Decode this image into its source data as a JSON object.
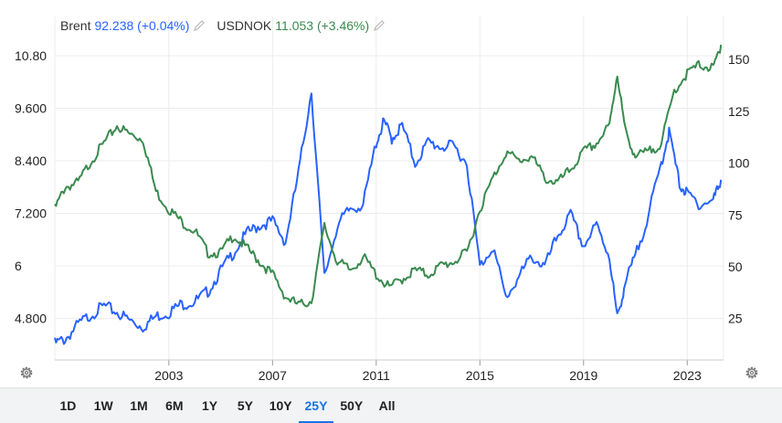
{
  "legend": {
    "brent_name": "Brent",
    "brent_value": "92.238 (+0.04%)",
    "usdnok_name": "USDNOK",
    "usdnok_value": "11.053 (+3.46%)"
  },
  "colors": {
    "brent": "#2962ff",
    "usdnok": "#3a8a4f",
    "grid": "#ececec",
    "text": "#333333",
    "active": "#1a73e8"
  },
  "icons": {
    "edit": "pencil-icon",
    "settings": "gear-icon"
  },
  "ranges": [
    "1D",
    "1W",
    "1M",
    "6M",
    "1Y",
    "5Y",
    "10Y",
    "25Y",
    "50Y",
    "All"
  ],
  "active_range": "25Y",
  "chart_data": {
    "type": "line",
    "x_range": [
      1998.6,
      2024.4
    ],
    "x_ticks": [
      "2003",
      "2007",
      "2011",
      "2015",
      "2019",
      "2023"
    ],
    "left_axis": {
      "ticks": [
        "10.80",
        "9.600",
        "8.400",
        "7.200",
        "6",
        "4.800"
      ],
      "values": [
        10.8,
        9.6,
        8.4,
        7.2,
        6.0,
        4.8
      ],
      "range": [
        3.85,
        11.28
      ]
    },
    "right_axis": {
      "ticks": [
        "150",
        "125",
        "100",
        "75",
        "50",
        "25"
      ],
      "values": [
        150,
        125,
        100,
        75,
        50,
        25
      ],
      "range": [
        5,
        162
      ]
    },
    "series": [
      {
        "name": "Brent",
        "axis": "right",
        "x": [
          1998.6,
          1999.0,
          1999.5,
          2000.0,
          2000.5,
          2001.0,
          2001.5,
          2002.0,
          2002.5,
          2003.0,
          2003.5,
          2004.0,
          2004.5,
          2005.0,
          2005.5,
          2006.0,
          2006.5,
          2007.0,
          2007.5,
          2008.0,
          2008.5,
          2009.0,
          2009.5,
          2010.0,
          2010.5,
          2011.0,
          2011.3,
          2011.6,
          2012.0,
          2012.5,
          2013.0,
          2013.5,
          2014.0,
          2014.5,
          2015.0,
          2015.5,
          2016.0,
          2016.5,
          2017.0,
          2017.5,
          2018.0,
          2018.5,
          2019.0,
          2019.5,
          2020.0,
          2020.3,
          2020.6,
          2021.0,
          2021.5,
          2022.0,
          2022.3,
          2022.7,
          2023.0,
          2023.5,
          2024.0,
          2024.3
        ],
        "y": [
          13,
          15,
          22,
          27,
          31,
          28,
          24,
          21,
          26,
          28,
          32,
          33,
          38,
          48,
          57,
          66,
          70,
          72,
          62,
          95,
          135,
          45,
          70,
          78,
          80,
          110,
          120,
          112,
          118,
          100,
          110,
          108,
          108,
          100,
          50,
          60,
          35,
          45,
          55,
          50,
          65,
          75,
          60,
          70,
          55,
          25,
          42,
          55,
          75,
          100,
          115,
          90,
          85,
          80,
          82,
          92
        ]
      },
      {
        "name": "USDNOK",
        "axis": "left",
        "x": [
          1998.6,
          1999.0,
          1999.5,
          2000.0,
          2000.5,
          2001.0,
          2001.5,
          2002.0,
          2002.5,
          2003.0,
          2003.5,
          2004.0,
          2004.5,
          2005.0,
          2005.5,
          2006.0,
          2006.5,
          2007.0,
          2007.5,
          2008.0,
          2008.5,
          2009.0,
          2009.5,
          2010.0,
          2010.5,
          2011.0,
          2011.5,
          2012.0,
          2012.5,
          2013.0,
          2013.5,
          2014.0,
          2014.5,
          2015.0,
          2015.5,
          2016.0,
          2016.5,
          2017.0,
          2017.5,
          2018.0,
          2018.5,
          2019.0,
          2019.5,
          2020.0,
          2020.3,
          2020.6,
          2021.0,
          2021.5,
          2022.0,
          2022.5,
          2023.0,
          2023.5,
          2024.0,
          2024.3
        ],
        "y": [
          7.3,
          7.8,
          7.9,
          8.4,
          8.8,
          9.2,
          9.0,
          8.9,
          7.7,
          7.3,
          7.0,
          6.8,
          6.3,
          6.3,
          6.7,
          6.4,
          6.1,
          5.8,
          5.3,
          5.1,
          5.2,
          6.9,
          6.1,
          5.9,
          6.2,
          5.8,
          5.5,
          5.7,
          5.9,
          5.8,
          6.0,
          6.1,
          6.3,
          7.3,
          8.0,
          8.6,
          8.4,
          8.5,
          8.0,
          7.9,
          8.2,
          8.6,
          8.8,
          9.2,
          10.4,
          9.1,
          8.5,
          8.6,
          8.8,
          10.0,
          10.4,
          10.6,
          10.5,
          11.05
        ]
      }
    ]
  }
}
